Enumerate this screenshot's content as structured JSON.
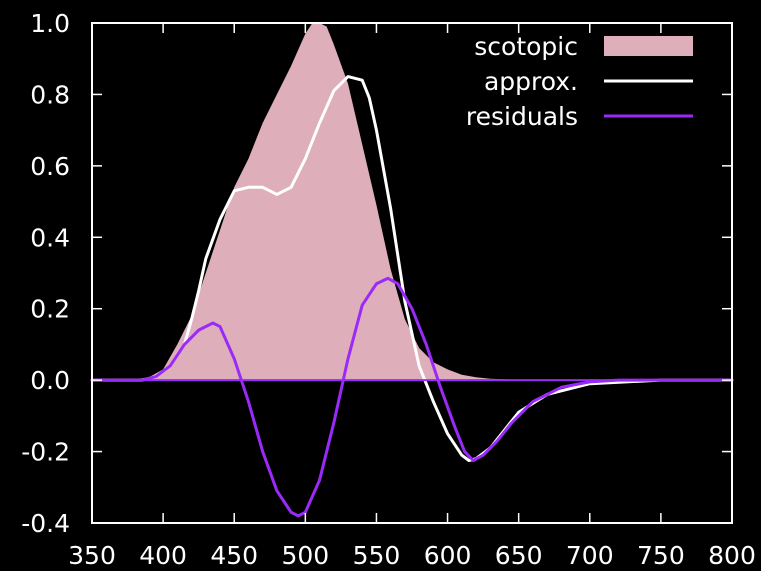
{
  "chart_data": {
    "type": "line",
    "title": "",
    "xlabel": "",
    "ylabel": "",
    "xlim": [
      350,
      800
    ],
    "ylim": [
      -0.4,
      1.0
    ],
    "xticks": [
      "350",
      "400",
      "450",
      "500",
      "550",
      "600",
      "650",
      "700",
      "750",
      "800"
    ],
    "yticks": [
      "-0.4",
      "-0.2",
      "0.0",
      "0.2",
      "0.4",
      "0.6",
      "0.8",
      "1.0"
    ],
    "legend_position": "top-right",
    "series": [
      {
        "name": "scotopic",
        "style": "filled-area",
        "color": "#dfaebb",
        "x": [
          350,
          380,
          390,
          400,
          410,
          420,
          430,
          440,
          450,
          460,
          470,
          480,
          490,
          500,
          505,
          510,
          515,
          520,
          530,
          540,
          550,
          560,
          570,
          580,
          590,
          600,
          610,
          620,
          630,
          650,
          700,
          800
        ],
        "y": [
          0,
          0.002,
          0.008,
          0.03,
          0.1,
          0.18,
          0.3,
          0.42,
          0.54,
          0.62,
          0.72,
          0.8,
          0.88,
          0.97,
          1.0,
          1.0,
          0.99,
          0.94,
          0.83,
          0.66,
          0.49,
          0.31,
          0.17,
          0.09,
          0.05,
          0.03,
          0.015,
          0.008,
          0.004,
          0.001,
          0,
          0
        ]
      },
      {
        "name": "approx.",
        "style": "line",
        "color": "#ffffff",
        "x": [
          350,
          385,
          395,
          405,
          415,
          420,
          425,
          430,
          440,
          450,
          460,
          470,
          480,
          490,
          500,
          510,
          520,
          530,
          540,
          545,
          550,
          560,
          570,
          580,
          590,
          600,
          610,
          615,
          620,
          630,
          640,
          650,
          670,
          700,
          750,
          800
        ],
        "y": [
          0,
          0,
          0.01,
          0.04,
          0.1,
          0.17,
          0.25,
          0.34,
          0.45,
          0.53,
          0.54,
          0.54,
          0.52,
          0.54,
          0.62,
          0.72,
          0.81,
          0.85,
          0.84,
          0.79,
          0.7,
          0.48,
          0.22,
          0.04,
          -0.06,
          -0.15,
          -0.21,
          -0.225,
          -0.22,
          -0.19,
          -0.14,
          -0.09,
          -0.04,
          -0.01,
          0,
          0
        ]
      },
      {
        "name": "residuals",
        "style": "line",
        "color": "#9a2af7",
        "x": [
          350,
          385,
          395,
          405,
          415,
          425,
          435,
          440,
          450,
          460,
          470,
          480,
          490,
          495,
          500,
          510,
          520,
          530,
          540,
          550,
          558,
          565,
          575,
          585,
          595,
          605,
          612,
          618,
          625,
          635,
          645,
          660,
          680,
          700,
          720,
          800
        ],
        "y": [
          0,
          0,
          0.01,
          0.04,
          0.1,
          0.14,
          0.16,
          0.15,
          0.06,
          -0.06,
          -0.2,
          -0.31,
          -0.37,
          -0.38,
          -0.37,
          -0.28,
          -0.12,
          0.06,
          0.21,
          0.27,
          0.285,
          0.27,
          0.2,
          0.1,
          -0.02,
          -0.13,
          -0.2,
          -0.225,
          -0.21,
          -0.17,
          -0.12,
          -0.06,
          -0.02,
          -0.005,
          0,
          0
        ]
      }
    ]
  }
}
